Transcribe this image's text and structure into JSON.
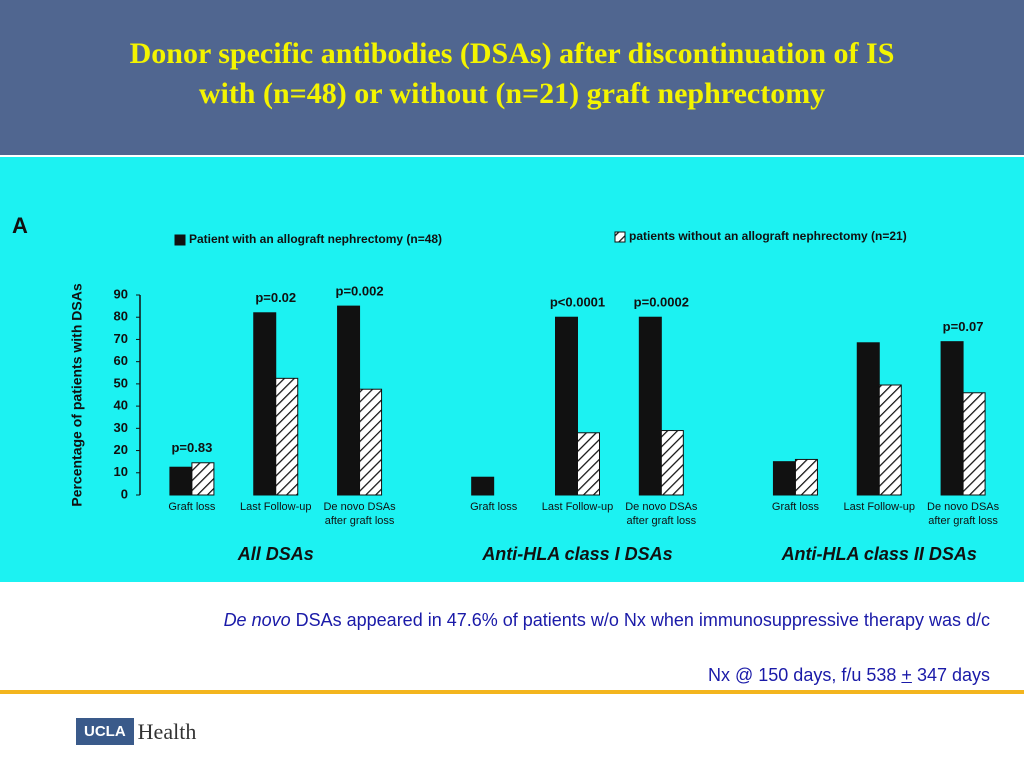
{
  "header": {
    "title_line1": "Donor specific antibodies (DSAs) after discontinuation of IS",
    "title_line2": "with (n=48) or without (n=21) graft nephrectomy"
  },
  "chart_data": {
    "type": "bar",
    "panel_label": "A",
    "y_label": "Percentage of patients with DSAs",
    "categories": [
      "Graft loss",
      "Last Follow-up",
      "De novo DSAs after graft loss",
      "Graft loss",
      "Last Follow-up",
      "De novo DSAs after graft loss",
      "Graft loss",
      "Last Follow-up",
      "De novo DSAs after graft loss"
    ],
    "groups": [
      "All DSAs",
      "Anti-HLA class I DSAs",
      "Anti-HLA class II DSAs"
    ],
    "p_values": [
      "p=0.83",
      "p=0.02",
      "p=0.002",
      null,
      "p<0.0001",
      "p=0.0002",
      null,
      null,
      "p=0.07"
    ],
    "series": [
      {
        "name": "Patient with an allograft nephrectomy (n=48)",
        "color": "#111111",
        "hatch": false,
        "values": [
          12.5,
          82,
          85,
          8,
          80,
          80,
          15,
          68.5,
          69
        ]
      },
      {
        "name": "patients without an allograft nephrectomy (n=21)",
        "color": "#111111",
        "hatch": true,
        "values": [
          14.5,
          52.5,
          47.6,
          0,
          28,
          29,
          16,
          49.5,
          46
        ]
      }
    ],
    "ylim": [
      0,
      90
    ],
    "yticks": [
      0,
      10,
      20,
      30,
      40,
      50,
      60,
      70,
      80,
      90
    ],
    "grid": false
  },
  "caption": {
    "emphasis": "De novo",
    "text": "DSAs appeared in 47.6% of patients w/o Nx when immunosuppressive therapy was d/c",
    "line2_a": "Nx @ 150 days, f/u 538",
    "line2_pm": "+",
    "line2_b": "347 days"
  },
  "logo": {
    "badge": "UCLA",
    "name": "Health"
  }
}
